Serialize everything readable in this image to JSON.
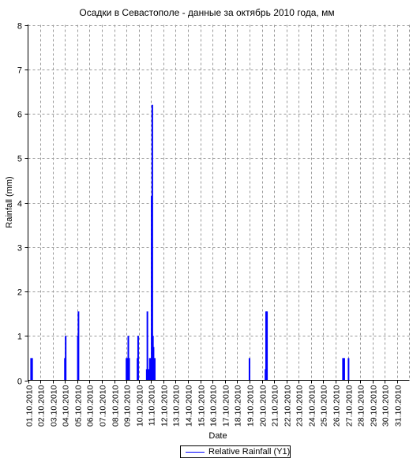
{
  "chart_data": {
    "type": "bar",
    "title": "Осадки в Севастополе - данные за октябрь 2010 года, мм",
    "xlabel": "Date",
    "ylabel": "Rainfall (mm)",
    "ylim": [
      0,
      8
    ],
    "yticks": [
      0,
      1,
      2,
      3,
      4,
      5,
      6,
      7,
      8
    ],
    "xlim": [
      1,
      32
    ],
    "xticks": [
      "01.10.2010",
      "02.10.2010",
      "03.10.2010",
      "04.10.2010",
      "05.10.2010",
      "06.10.2010",
      "07.10.2010",
      "08.10.2010",
      "09.10.2010",
      "10.10.2010",
      "11.10.2010",
      "12.10.2010",
      "13.10.2010",
      "14.10.2010",
      "15.10.2010",
      "16.10.2010",
      "17.10.2010",
      "18.10.2010",
      "19.10.2010",
      "20.10.2010",
      "21.10.2010",
      "22.10.2010",
      "23.10.2010",
      "24.10.2010",
      "25.10.2010",
      "26.10.2010",
      "27.10.2010",
      "28.10.2010",
      "29.10.2010",
      "30.10.2010",
      "31.10.2010"
    ],
    "grid": true,
    "legend_position": "bottom-center",
    "series": [
      {
        "name": "Relative Rainfall (Y1)",
        "color": "#0000ff",
        "points": [
          {
            "x": 1.25,
            "y": 0.5
          },
          {
            "x": 1.33,
            "y": 0.5
          },
          {
            "x": 4.0,
            "y": 0.5
          },
          {
            "x": 4.06,
            "y": 1.0
          },
          {
            "x": 5.05,
            "y": 1.0
          },
          {
            "x": 5.1,
            "y": 1.55
          },
          {
            "x": 9.0,
            "y": 0.5
          },
          {
            "x": 9.08,
            "y": 0.5
          },
          {
            "x": 9.15,
            "y": 1.0
          },
          {
            "x": 9.22,
            "y": 0.5
          },
          {
            "x": 9.9,
            "y": 0.5
          },
          {
            "x": 9.95,
            "y": 1.0
          },
          {
            "x": 10.65,
            "y": 0.25
          },
          {
            "x": 10.7,
            "y": 1.55
          },
          {
            "x": 10.75,
            "y": 0.25
          },
          {
            "x": 10.85,
            "y": 0.25
          },
          {
            "x": 10.9,
            "y": 0.5
          },
          {
            "x": 11.0,
            "y": 0.5
          },
          {
            "x": 11.05,
            "y": 4.15
          },
          {
            "x": 11.1,
            "y": 6.2
          },
          {
            "x": 11.15,
            "y": 1.0
          },
          {
            "x": 11.2,
            "y": 0.75
          },
          {
            "x": 11.3,
            "y": 0.5
          },
          {
            "x": 19.0,
            "y": 0.5
          },
          {
            "x": 20.3,
            "y": 0.25
          },
          {
            "x": 20.35,
            "y": 1.55
          },
          {
            "x": 20.42,
            "y": 1.55
          },
          {
            "x": 26.6,
            "y": 0.5
          },
          {
            "x": 26.7,
            "y": 0.5
          },
          {
            "x": 27.05,
            "y": 0.5
          }
        ]
      }
    ]
  }
}
